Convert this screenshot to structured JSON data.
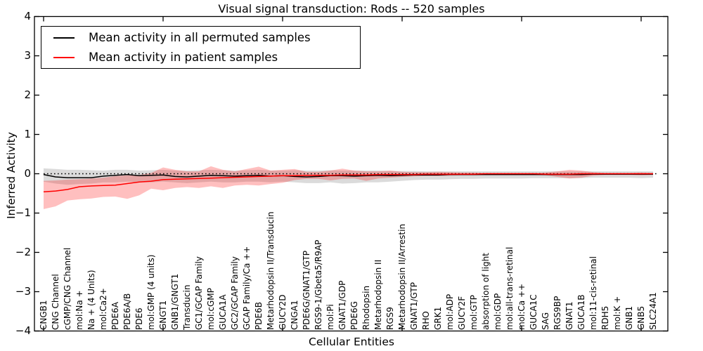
{
  "figure": {
    "title": "Visual signal transduction: Rods -- 520 samples",
    "background": "#ffffff"
  },
  "legend": {
    "items": [
      {
        "label": "Mean activity in all permuted samples",
        "color": "#000000"
      },
      {
        "label": "Mean activity in patient samples",
        "color": "#ff0000"
      }
    ]
  },
  "chart_data": {
    "type": "line",
    "title": "Visual signal transduction: Rods -- 520 samples",
    "xlabel": "Cellular Entities",
    "ylabel": "Inferred Activity",
    "ylim": [
      -4,
      4
    ],
    "yticks": [
      4,
      3,
      2,
      1,
      0,
      -1,
      -2,
      -3,
      -4
    ],
    "grid": false,
    "legend_position": "upper left",
    "reference_line": {
      "y": 0,
      "style": "dotted",
      "color": "#000000"
    },
    "categories": [
      "CNGB1",
      "CNG Channel",
      "cGMP/CNG Channel",
      "mol:Na +",
      "Na + (4 Units)",
      "mol:Ca2+",
      "PDE6A",
      "PDE6A/B",
      "PDE6",
      "mol:GMP (4 units)",
      "GNGT1",
      "GNB1/GNGT1",
      "Transducin",
      "GC1/GCAP Family",
      "mol:cGMP",
      "GUCA1A",
      "GC2/GCAP Family",
      "GCAP Family/Ca ++",
      "PDE6B",
      "Metarhodopsin II/Transducin",
      "GUCY2D",
      "CNGA1",
      "PDE6G/GNAT1/GTP",
      "RGS9-1/Gbeta5/R9AP",
      "mol:Pi",
      "GNAT1/GDP",
      "PDE6G",
      "Rhodopsin",
      "Metarhodopsin II",
      "RGS9",
      "Metarhodopsin II/Arrestin",
      "GNAT1/GTP",
      "RHO",
      "GRK1",
      "mol:ADP",
      "GUCY2F",
      "mol:GTP",
      "absorption of light",
      "mol:GDP",
      "mol:all-trans-retinal",
      "mol:Ca ++",
      "GUCA1C",
      "SAG",
      "RGS9BP",
      "GNAT1",
      "GUCA1B",
      "mol:11-cis-retinal",
      "RDH5",
      "mol:K +",
      "GNB1",
      "GNB5",
      "SLC24A1"
    ],
    "series": [
      {
        "name": "Mean activity in all permuted samples",
        "color": "#000000",
        "band_color": "rgba(0,0,0,0.14)",
        "values": [
          -0.02,
          -0.08,
          -0.1,
          -0.1,
          -0.1,
          -0.06,
          -0.04,
          -0.02,
          -0.05,
          -0.04,
          -0.03,
          -0.07,
          -0.08,
          -0.06,
          -0.04,
          -0.05,
          -0.06,
          -0.05,
          -0.04,
          -0.06,
          -0.05,
          -0.07,
          -0.08,
          -0.07,
          -0.05,
          -0.05,
          -0.06,
          -0.05,
          -0.04,
          -0.05,
          -0.04,
          -0.03,
          -0.03,
          -0.03,
          -0.02,
          -0.02,
          -0.02,
          -0.02,
          -0.02,
          -0.02,
          -0.02,
          -0.02,
          -0.02,
          -0.02,
          -0.02,
          -0.02,
          -0.01,
          -0.01,
          -0.01,
          -0.01,
          -0.01,
          -0.01
        ],
        "band_upper": [
          0.14,
          0.12,
          0.1,
          0.1,
          0.09,
          0.08,
          0.1,
          0.1,
          0.08,
          0.09,
          0.1,
          0.08,
          0.08,
          0.09,
          0.1,
          0.09,
          0.08,
          0.09,
          0.1,
          0.08,
          0.08,
          0.09,
          0.08,
          0.08,
          0.09,
          0.08,
          0.08,
          0.08,
          0.08,
          0.07,
          0.07,
          0.07,
          0.06,
          0.06,
          0.06,
          0.06,
          0.06,
          0.06,
          0.06,
          0.06,
          0.06,
          0.06,
          0.06,
          0.06,
          0.06,
          0.06,
          0.06,
          0.06,
          0.06,
          0.06,
          0.06,
          0.06
        ],
        "band_lower": [
          -0.2,
          -0.25,
          -0.28,
          -0.26,
          -0.25,
          -0.22,
          -0.22,
          -0.2,
          -0.22,
          -0.22,
          -0.2,
          -0.22,
          -0.24,
          -0.22,
          -0.2,
          -0.22,
          -0.22,
          -0.2,
          -0.2,
          -0.22,
          -0.2,
          -0.22,
          -0.24,
          -0.24,
          -0.22,
          -0.25,
          -0.24,
          -0.22,
          -0.22,
          -0.2,
          -0.18,
          -0.16,
          -0.15,
          -0.15,
          -0.14,
          -0.13,
          -0.13,
          -0.12,
          -0.12,
          -0.12,
          -0.12,
          -0.11,
          -0.11,
          -0.11,
          -0.11,
          -0.11,
          -0.1,
          -0.1,
          -0.1,
          -0.1,
          -0.11,
          -0.1
        ]
      },
      {
        "name": "Mean activity in patient samples",
        "color": "#ff0000",
        "band_color": "rgba(255,0,0,0.25)",
        "values": [
          -0.46,
          -0.44,
          -0.4,
          -0.33,
          -0.31,
          -0.3,
          -0.29,
          -0.25,
          -0.21,
          -0.19,
          -0.15,
          -0.14,
          -0.13,
          -0.12,
          -0.11,
          -0.1,
          -0.09,
          -0.08,
          -0.07,
          -0.06,
          -0.05,
          -0.05,
          -0.04,
          -0.04,
          -0.04,
          -0.03,
          -0.03,
          -0.03,
          -0.02,
          -0.02,
          -0.02,
          -0.02,
          -0.01,
          -0.01,
          -0.01,
          -0.01,
          -0.01,
          0.0,
          0.0,
          0.0,
          0.0,
          0.0,
          -0.01,
          -0.01,
          -0.01,
          0.0,
          0.0,
          0.0,
          0.0,
          0.0,
          0.0,
          0.0
        ],
        "band_upper": [
          -0.18,
          -0.17,
          -0.15,
          -0.14,
          -0.12,
          -0.1,
          -0.06,
          -0.04,
          -0.03,
          0.02,
          0.16,
          0.1,
          0.06,
          0.06,
          0.19,
          0.1,
          0.06,
          0.12,
          0.18,
          0.08,
          0.1,
          0.12,
          0.05,
          0.05,
          0.08,
          0.13,
          0.08,
          0.06,
          0.06,
          0.08,
          0.05,
          0.04,
          0.04,
          0.05,
          0.04,
          0.03,
          0.03,
          0.02,
          0.02,
          0.02,
          0.02,
          0.02,
          0.03,
          0.06,
          0.1,
          0.08,
          0.04,
          0.02,
          0.02,
          0.02,
          0.03,
          0.02
        ],
        "band_lower": [
          -0.9,
          -0.83,
          -0.68,
          -0.65,
          -0.63,
          -0.59,
          -0.58,
          -0.64,
          -0.55,
          -0.38,
          -0.42,
          -0.36,
          -0.34,
          -0.36,
          -0.32,
          -0.36,
          -0.3,
          -0.28,
          -0.3,
          -0.26,
          -0.23,
          -0.16,
          -0.13,
          -0.13,
          -0.17,
          -0.13,
          -0.12,
          -0.18,
          -0.12,
          -0.1,
          -0.08,
          -0.07,
          -0.06,
          -0.06,
          -0.05,
          -0.04,
          -0.04,
          -0.03,
          -0.03,
          -0.03,
          -0.03,
          -0.03,
          -0.04,
          -0.08,
          -0.12,
          -0.1,
          -0.05,
          -0.03,
          -0.03,
          -0.03,
          -0.04,
          -0.03
        ]
      }
    ]
  }
}
